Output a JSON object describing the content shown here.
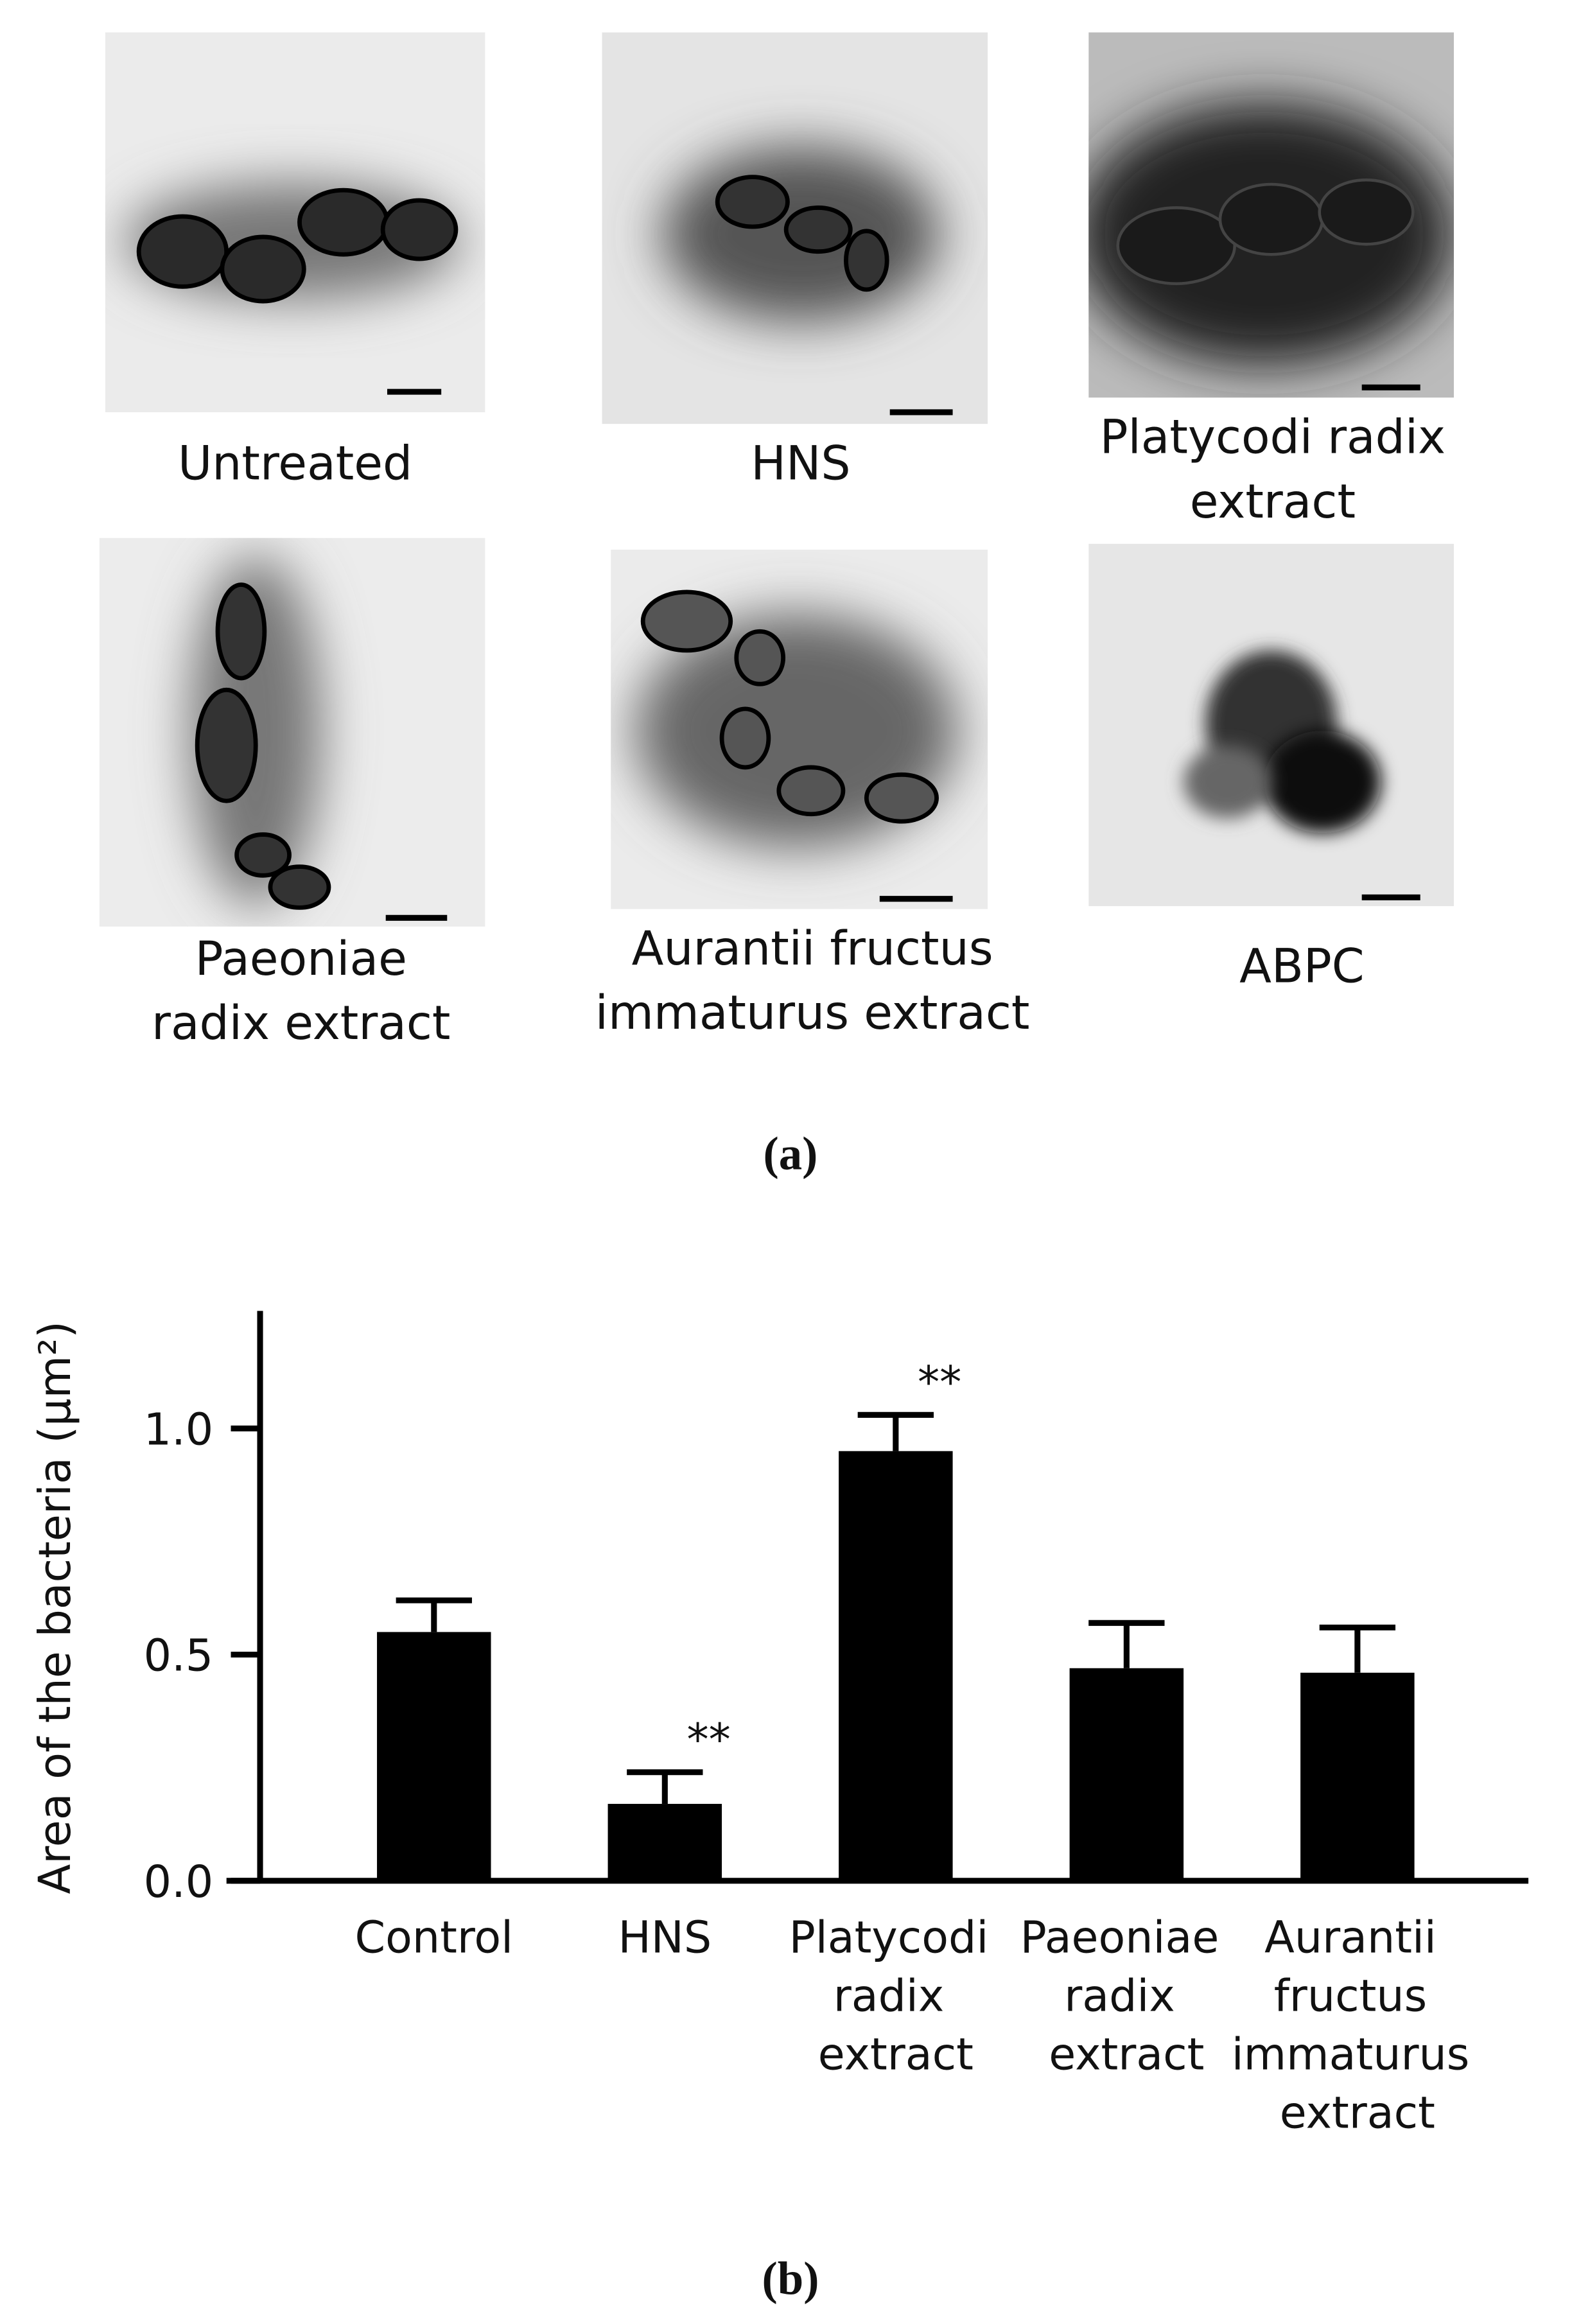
{
  "panel_a": {
    "label": "(a)",
    "images": [
      {
        "caption_lines": [
          "Untreated"
        ]
      },
      {
        "caption_lines": [
          "HNS"
        ]
      },
      {
        "caption_lines": [
          "Platycodi radix",
          "extract"
        ]
      },
      {
        "caption_lines": [
          "Paeoniae",
          "radix extract"
        ]
      },
      {
        "caption_lines": [
          "Aurantii fructus",
          "immaturus extract"
        ]
      },
      {
        "caption_lines": [
          "ABPC"
        ]
      }
    ]
  },
  "chart_data": {
    "type": "bar",
    "label": "(b)",
    "y_label": "Area of the bacteria (μm²)",
    "categories": [
      "Control",
      "HNS",
      "Platycodi radix extract",
      "Paeoniae radix extract",
      "Aurantii fructus immaturus extract"
    ],
    "values": [
      0.55,
      0.17,
      0.95,
      0.47,
      0.46
    ],
    "errors": [
      0.07,
      0.07,
      0.08,
      0.1,
      0.1
    ],
    "significance": [
      null,
      "**",
      "**",
      null,
      null
    ],
    "color": "#000000",
    "ylim": [
      0,
      1.26
    ],
    "yticks": [
      {
        "value": 0,
        "label": "0.0"
      },
      {
        "value": 0.5,
        "label": "0.5"
      },
      {
        "value": 1,
        "label": "1.0"
      }
    ]
  }
}
